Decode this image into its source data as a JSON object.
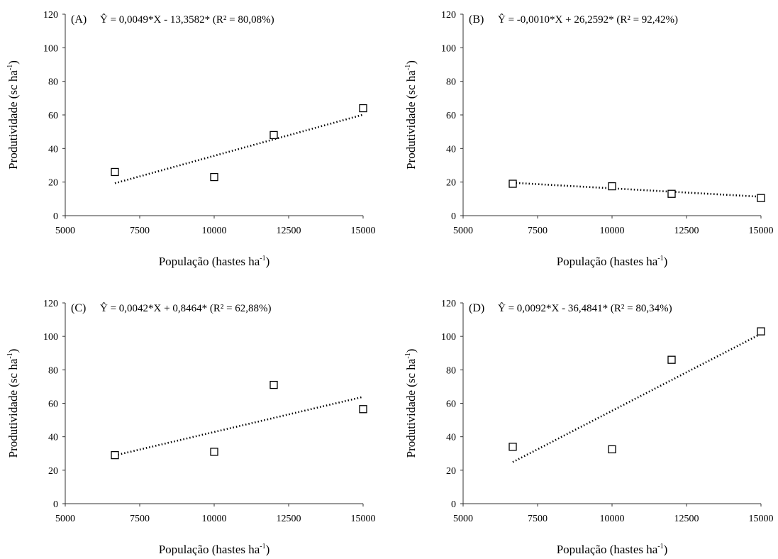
{
  "figure": {
    "axis_labels": {
      "x_prefix": "População (hastes ha",
      "x_exp": "-1",
      "x_suffix": ")",
      "y_prefix": "Produtividade (sc ha",
      "y_exp": "-1",
      "y_suffix": ")"
    }
  },
  "chart_data": [
    {
      "type": "scatter",
      "panel": "(A)",
      "equation": "Ŷ = 0,0049*X - 13,3582* (R² = 80,08%)",
      "xlabel": "População (hastes ha-1)",
      "ylabel": "Produtividade (sc ha-1)",
      "xlim": [
        5000,
        15000
      ],
      "ylim": [
        0,
        120
      ],
      "xticks": [
        "5000",
        "7500",
        "10000",
        "12500",
        "15000"
      ],
      "yticks": [
        "0",
        "20",
        "40",
        "60",
        "80",
        "100",
        "120"
      ],
      "points": [
        {
          "x": 6667,
          "y": 26
        },
        {
          "x": 10000,
          "y": 23
        },
        {
          "x": 12000,
          "y": 48
        },
        {
          "x": 15000,
          "y": 64
        }
      ],
      "trendline": {
        "slope": 0.0049,
        "intercept": -13.3582,
        "x_range": [
          6667,
          15000
        ],
        "style": "dotted"
      },
      "grid": false,
      "marker": "open-square"
    },
    {
      "type": "scatter",
      "panel": "(B)",
      "equation": "Ŷ = -0,0010*X + 26,2592* (R² = 92,42%)",
      "xlabel": "População (hastes ha-1)",
      "ylabel": "Produtividade (sc ha-1)",
      "xlim": [
        5000,
        15000
      ],
      "ylim": [
        0,
        120
      ],
      "xticks": [
        "5000",
        "7500",
        "10000",
        "12500",
        "15000"
      ],
      "yticks": [
        "0",
        "20",
        "40",
        "60",
        "80",
        "100",
        "120"
      ],
      "points": [
        {
          "x": 6667,
          "y": 19
        },
        {
          "x": 10000,
          "y": 17.5
        },
        {
          "x": 12000,
          "y": 13
        },
        {
          "x": 15000,
          "y": 10.5
        }
      ],
      "trendline": {
        "slope": -0.001,
        "intercept": 26.2592,
        "x_range": [
          6667,
          15000
        ],
        "style": "dotted"
      },
      "grid": false,
      "marker": "open-square"
    },
    {
      "type": "scatter",
      "panel": "(C)",
      "equation": "Ŷ = 0,0042*X + 0,8464* (R² = 62,88%)",
      "xlabel": "População (hastes ha-1)",
      "ylabel": "Produtividade (sc ha-1)",
      "xlim": [
        5000,
        15000
      ],
      "ylim": [
        0,
        120
      ],
      "xticks": [
        "5000",
        "7500",
        "10000",
        "12500",
        "15000"
      ],
      "yticks": [
        "0",
        "20",
        "40",
        "60",
        "80",
        "100",
        "120"
      ],
      "points": [
        {
          "x": 6667,
          "y": 29
        },
        {
          "x": 10000,
          "y": 31
        },
        {
          "x": 12000,
          "y": 71
        },
        {
          "x": 15000,
          "y": 56.5
        }
      ],
      "trendline": {
        "slope": 0.0042,
        "intercept": 0.8464,
        "x_range": [
          6667,
          15000
        ],
        "style": "dotted"
      },
      "grid": false,
      "marker": "open-square"
    },
    {
      "type": "scatter",
      "panel": "(D)",
      "equation": "Ŷ = 0,0092*X - 36,4841* (R² = 80,34%)",
      "xlabel": "População (hastes ha-1)",
      "ylabel": "Produtividade (sc ha-1)",
      "xlim": [
        5000,
        15000
      ],
      "ylim": [
        0,
        120
      ],
      "xticks": [
        "5000",
        "7500",
        "10000",
        "12500",
        "15000"
      ],
      "yticks": [
        "0",
        "20",
        "40",
        "60",
        "80",
        "100",
        "120"
      ],
      "points": [
        {
          "x": 6667,
          "y": 34
        },
        {
          "x": 10000,
          "y": 32.5
        },
        {
          "x": 12000,
          "y": 86
        },
        {
          "x": 15000,
          "y": 103
        }
      ],
      "trendline": {
        "slope": 0.0092,
        "intercept": -36.4841,
        "x_range": [
          6667,
          15000
        ],
        "style": "dotted"
      },
      "grid": false,
      "marker": "open-square"
    }
  ]
}
